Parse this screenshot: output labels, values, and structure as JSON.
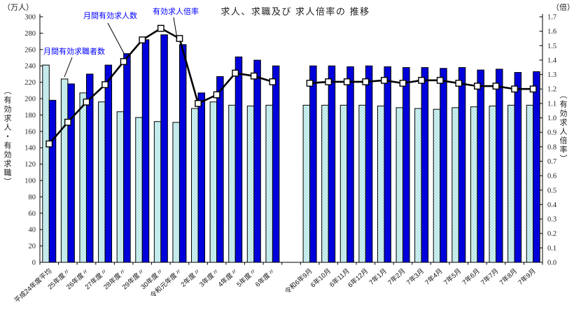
{
  "title": "求人、求職及び 求人倍率の 推移",
  "axes": {
    "left_unit": "（万人）",
    "right_unit": "（倍）",
    "left_axis_label": "（有効求人・有効求職）",
    "right_axis_label": "（有効求人倍率）"
  },
  "annotations": {
    "openings_label": "月間有効求人数",
    "ratio_label": "有効求人倍率",
    "seekers_label": "月間有効求職者数"
  },
  "colors": {
    "openings_bar": "#0000dd",
    "seekers_bar_base": "#d9f2f2",
    "seekers_bar_dot": "#7fd2d6",
    "ratio_line": "#000000",
    "marker_fill": "#ffffff",
    "annotation_text": "#0000ff",
    "axis": "#000000"
  },
  "chart_data": {
    "type": "bar",
    "title": "求人、求職及び求人倍率の推移",
    "grid": false,
    "legend_position": "annotations-with-leader-lines",
    "left_axis": {
      "label": "（有効求人・有効求職）",
      "unit": "万人",
      "min": 0,
      "max": 300,
      "step": 20
    },
    "right_axis": {
      "label": "（有効求人倍率）",
      "unit": "倍",
      "min": 0.0,
      "max": 1.7,
      "step": 0.1
    },
    "bar_series": [
      {
        "name": "月間有効求職者数",
        "axis": "left",
        "style": "stippled-light-cyan",
        "color_base": "#d9f2f2",
        "color_dot": "#7fd2d6"
      },
      {
        "name": "月間有効求人数",
        "axis": "left",
        "style": "solid-blue",
        "color": "#0000dd"
      }
    ],
    "line_series": {
      "name": "有効求人倍率",
      "axis": "right",
      "color": "#000000",
      "marker": "white-square"
    },
    "groups": [
      {
        "id": "yearly",
        "categories": [
          "平成24年度平均",
          "25年度〃",
          "26年度〃",
          "27年度〃",
          "28年度〃",
          "29年度〃",
          "30年度〃",
          "令和元年度〃",
          "2年度〃",
          "3年度〃",
          "4年度〃",
          "5年度〃",
          "6年度〃"
        ],
        "seekers": [
          241,
          224,
          207,
          196,
          184,
          177,
          172,
          171,
          188,
          196,
          192,
          191,
          192
        ],
        "openings": [
          198,
          218,
          230,
          241,
          255,
          272,
          278,
          266,
          207,
          227,
          251,
          247,
          240
        ],
        "ratio": [
          0.82,
          0.97,
          1.11,
          1.23,
          1.39,
          1.54,
          1.62,
          1.55,
          1.1,
          1.16,
          1.31,
          1.29,
          1.25
        ]
      },
      {
        "id": "monthly",
        "categories": [
          "令和6年9月",
          "6年10月",
          "6年11月",
          "6年12月",
          "7年1月",
          "7年2月",
          "7年3月",
          "7年4月",
          "7年5月",
          "7年6月",
          "7年7月",
          "7年8月",
          "7年9月"
        ],
        "seekers": [
          192,
          192,
          192,
          192,
          191,
          189,
          188,
          187,
          189,
          190,
          191,
          192,
          192
        ],
        "openings": [
          240,
          240,
          239,
          240,
          239,
          238,
          238,
          237,
          238,
          235,
          236,
          232,
          233
        ],
        "ratio": [
          1.24,
          1.25,
          1.25,
          1.25,
          1.26,
          1.24,
          1.26,
          1.26,
          1.24,
          1.22,
          1.22,
          1.2,
          1.2
        ]
      }
    ]
  }
}
